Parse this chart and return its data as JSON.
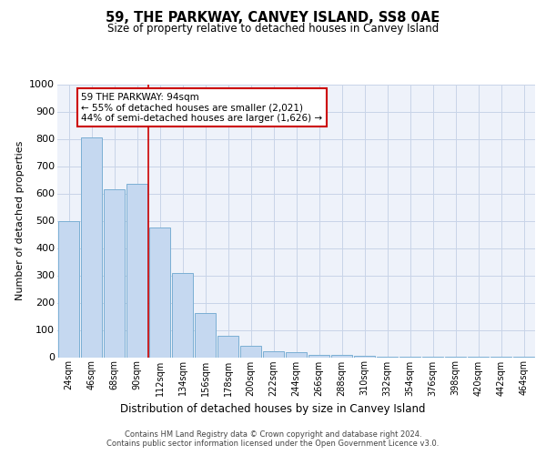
{
  "title": "59, THE PARKWAY, CANVEY ISLAND, SS8 0AE",
  "subtitle": "Size of property relative to detached houses in Canvey Island",
  "xlabel": "Distribution of detached houses by size in Canvey Island",
  "ylabel": "Number of detached properties",
  "categories": [
    "24sqm",
    "46sqm",
    "68sqm",
    "90sqm",
    "112sqm",
    "134sqm",
    "156sqm",
    "178sqm",
    "200sqm",
    "222sqm",
    "244sqm",
    "266sqm",
    "288sqm",
    "310sqm",
    "332sqm",
    "354sqm",
    "376sqm",
    "398sqm",
    "420sqm",
    "442sqm",
    "464sqm"
  ],
  "values": [
    500,
    805,
    615,
    635,
    475,
    310,
    162,
    78,
    43,
    22,
    18,
    10,
    7,
    4,
    3,
    2,
    1,
    1,
    1,
    1,
    1
  ],
  "bar_color": "#c5d8f0",
  "bar_edge_color": "#7bafd4",
  "grid_color": "#c8d4e8",
  "background_color": "#eef2fa",
  "annotation_text": "59 THE PARKWAY: 94sqm\n← 55% of detached houses are smaller (2,021)\n44% of semi-detached houses are larger (1,626) →",
  "annotation_box_color": "#ffffff",
  "annotation_box_edge": "#cc0000",
  "footer_text": "Contains HM Land Registry data © Crown copyright and database right 2024.\nContains public sector information licensed under the Open Government Licence v3.0.",
  "ylim": [
    0,
    1000
  ],
  "yticks": [
    0,
    100,
    200,
    300,
    400,
    500,
    600,
    700,
    800,
    900,
    1000
  ],
  "red_line_x": 3.5
}
